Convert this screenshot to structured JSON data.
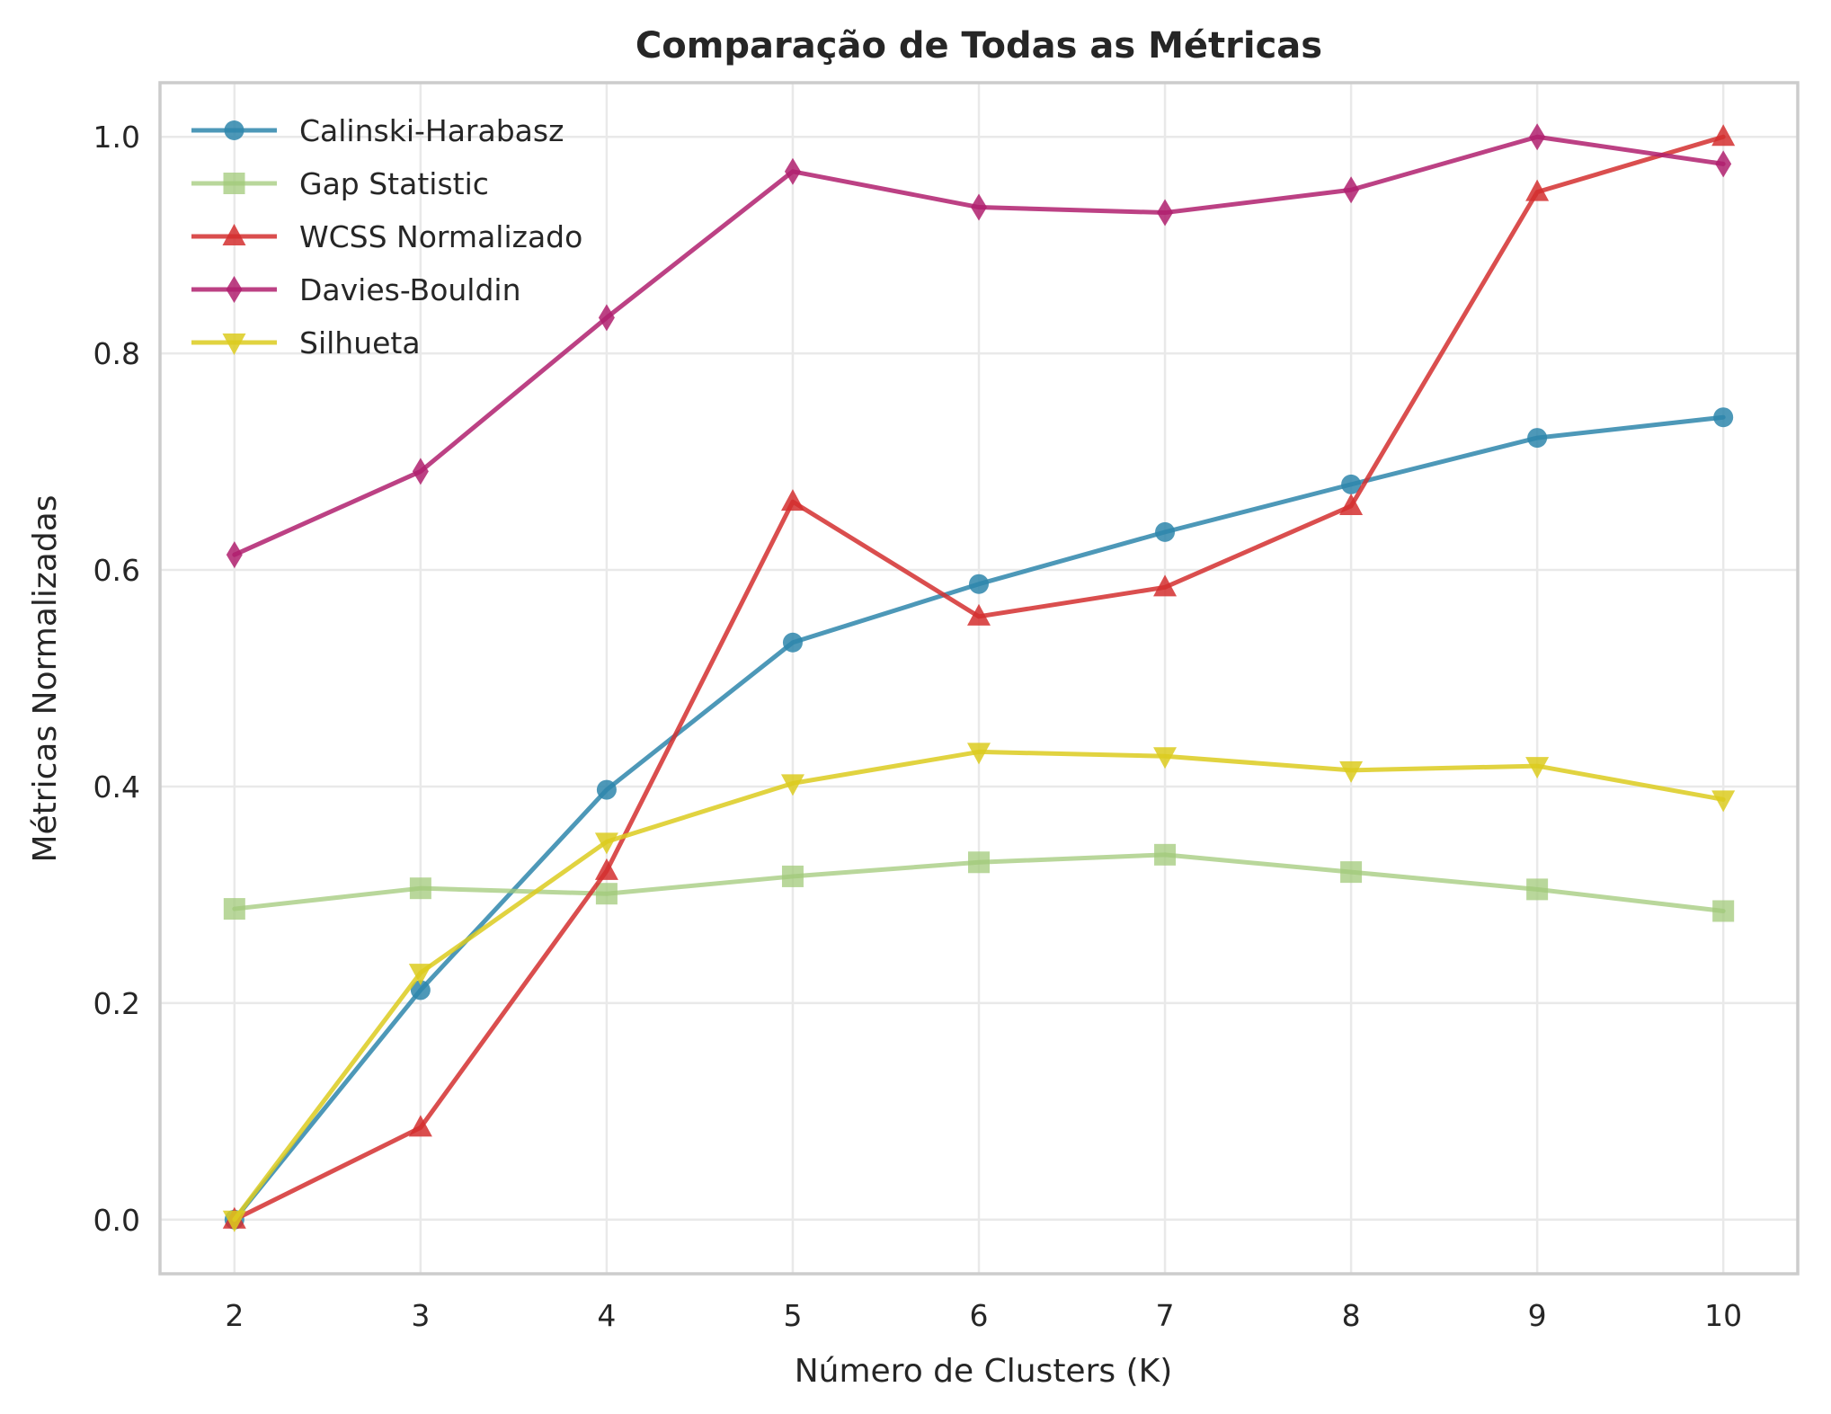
{
  "chart_data": {
    "type": "line",
    "title": "Comparação de Todas as Métricas",
    "xlabel": "Número de Clusters (K)",
    "ylabel": "Métricas Normalizadas",
    "x": [
      2,
      3,
      4,
      5,
      6,
      7,
      8,
      9,
      10
    ],
    "x_ticks": [
      "2",
      "3",
      "4",
      "5",
      "6",
      "7",
      "8",
      "9",
      "10"
    ],
    "y_ticks": [
      "0.0",
      "0.2",
      "0.4",
      "0.6",
      "0.8",
      "1.0"
    ],
    "y_tick_values": [
      0.0,
      0.2,
      0.4,
      0.6,
      0.8,
      1.0
    ],
    "xlim": [
      1.6,
      10.4
    ],
    "ylim": [
      -0.05,
      1.05
    ],
    "grid": true,
    "legend_position": "top-left",
    "series": [
      {
        "name": "Calinski-Harabasz",
        "color": "#2e86ab",
        "marker": "circle",
        "alpha": 0.85,
        "values": [
          0.0,
          0.212,
          0.397,
          0.533,
          0.587,
          0.635,
          0.679,
          0.722,
          0.741
        ]
      },
      {
        "name": "Gap Statistic",
        "color": "#a1c97a",
        "marker": "square",
        "alpha": 0.75,
        "values": [
          0.287,
          0.306,
          0.301,
          0.317,
          0.33,
          0.337,
          0.321,
          0.305,
          0.285
        ]
      },
      {
        "name": "WCSS Normalizado",
        "color": "#d32f2f",
        "marker": "triangle-up",
        "alpha": 0.85,
        "values": [
          0.0,
          0.085,
          0.322,
          0.663,
          0.557,
          0.584,
          0.659,
          0.949,
          1.0
        ]
      },
      {
        "name": "Davies-Bouldin",
        "color": "#b0206f",
        "marker": "thin-diamond",
        "alpha": 0.85,
        "values": [
          0.614,
          0.691,
          0.833,
          0.968,
          0.935,
          0.93,
          0.951,
          1.0,
          0.975
        ]
      },
      {
        "name": "Silhueta",
        "color": "#dccb1e",
        "marker": "triangle-down",
        "alpha": 0.85,
        "values": [
          0.0,
          0.228,
          0.349,
          0.403,
          0.432,
          0.428,
          0.415,
          0.419,
          0.388
        ]
      }
    ]
  }
}
